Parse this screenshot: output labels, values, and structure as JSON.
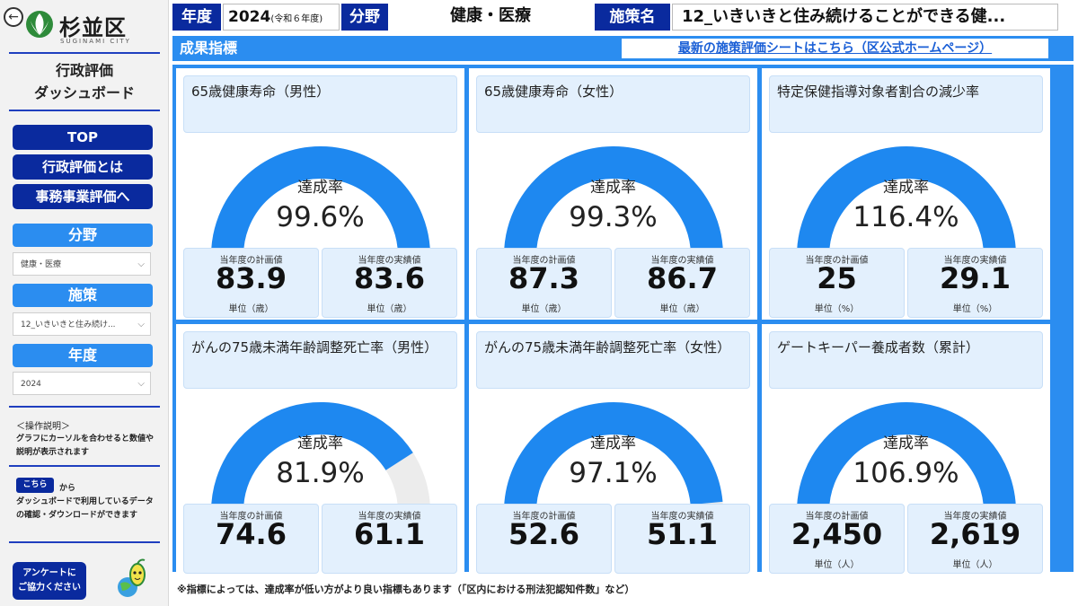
{
  "sidebar": {
    "logo_text": "杉並区",
    "logo_sub": "SUGINAMI CITY",
    "title_line1": "行政評価",
    "title_line2": "ダッシュボード",
    "nav": [
      "TOP",
      "行政評価とは",
      "事務事業評価へ"
    ],
    "filters": [
      {
        "label": "分野",
        "value": "健康・医療"
      },
      {
        "label": "施策",
        "value": "12_いきいきと住み続け..."
      },
      {
        "label": "年度",
        "value": "2024"
      }
    ],
    "ops_title": "＜操作説明＞",
    "ops_text": "グラフにカーソルを合わせると数値や説明が表示されます",
    "here_label": "こちら",
    "here_suffix": "から",
    "data_text": "ダッシュボードで利用しているデータの確認・ダウンロードができます",
    "survey_line1": "アンケートに",
    "survey_line2": "ご協力ください"
  },
  "header": {
    "year_label": "年度",
    "year_value": "2024",
    "year_note": "(令和６年度)",
    "field_label": "分野",
    "field_value": "健康・医療",
    "policy_label": "施策名",
    "policy_value": "12_いきいきと住み続けることができる健..."
  },
  "subbar": {
    "title": "成果指標",
    "link": "最新の施策評価シートはこちら（区公式ホームページ）"
  },
  "gauge_label": "達成率",
  "plan_caption": "当年度の計画値",
  "actual_caption": "当年度の実績値",
  "indicators": [
    {
      "title": "65歳健康寿命（男性）",
      "rate": "99.6%",
      "rate_value": 99.6,
      "plan": "83.9",
      "actual": "83.6",
      "plan_unit": "単位（歳）",
      "actual_unit": "単位（歳）"
    },
    {
      "title": "65歳健康寿命（女性）",
      "rate": "99.3%",
      "rate_value": 99.3,
      "plan": "87.3",
      "actual": "86.7",
      "plan_unit": "単位（歳）",
      "actual_unit": "単位（歳）"
    },
    {
      "title": "特定保健指導対象者割合の減少率",
      "rate": "116.4%",
      "rate_value": 116.4,
      "plan": "25",
      "actual": "29.1",
      "plan_unit": "単位（%）",
      "actual_unit": "単位（%）"
    },
    {
      "title": "がんの75歳未満年齢調整死亡率（男性）",
      "rate": "81.9%",
      "rate_value": 81.9,
      "plan": "74.6",
      "actual": "61.1",
      "plan_unit": "",
      "actual_unit": ""
    },
    {
      "title": "がんの75歳未満年齢調整死亡率（女性）",
      "rate": "97.1%",
      "rate_value": 97.1,
      "plan": "52.6",
      "actual": "51.1",
      "plan_unit": "",
      "actual_unit": ""
    },
    {
      "title": "ゲートキーパー養成者数（累計）",
      "rate": "106.9%",
      "rate_value": 106.9,
      "plan": "2,450",
      "actual": "2,619",
      "plan_unit": "単位（人）",
      "actual_unit": "単位（人）"
    }
  ],
  "footnote": "※指標によっては、達成率が低い方がより良い指標もあります（「区内における刑法犯認知件数」など）",
  "colors": {
    "accent": "#2b8df0",
    "navy": "#0a2a9e",
    "gauge_fill": "#1e88f0",
    "gauge_track": "#ececec"
  }
}
